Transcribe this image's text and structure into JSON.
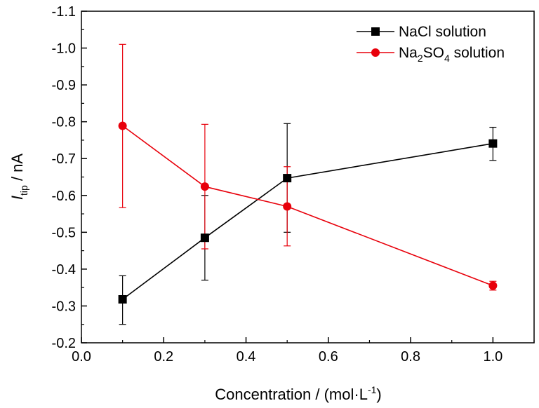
{
  "chart_data": {
    "type": "line",
    "xlabel": {
      "base": "Concentration / (mol·L",
      "sup": "-1",
      "close": ")"
    },
    "ylabel": {
      "italic": "I",
      "sub": "tip",
      "rest": " / nA"
    },
    "xlim": [
      0.0,
      1.1
    ],
    "ylim": [
      -0.2,
      -1.1
    ],
    "y_inverted": true,
    "grid": false,
    "legend_position": "top-right",
    "x_ticks": [
      0.0,
      0.2,
      0.4,
      0.6,
      0.8,
      1.0
    ],
    "x_tick_labels": [
      "0.0",
      "0.2",
      "0.4",
      "0.6",
      "0.8",
      "1.0"
    ],
    "y_ticks": [
      -0.2,
      -0.3,
      -0.4,
      -0.5,
      -0.6,
      -0.7,
      -0.8,
      -0.9,
      -1.0,
      -1.1
    ],
    "y_tick_labels": [
      "-0.2",
      "-0.3",
      "-0.4",
      "-0.5",
      "-0.6",
      "-0.7",
      "-0.8",
      "-0.9",
      "-1.0",
      "-1.1"
    ],
    "series": [
      {
        "name": "NaCl solution",
        "legend_parts": [
          {
            "t": "NaCl solution"
          }
        ],
        "color": "#000000",
        "marker": "square",
        "points": [
          {
            "x": 0.1,
            "y": -0.318,
            "err_low": -0.25,
            "err_high": -0.382
          },
          {
            "x": 0.3,
            "y": -0.485,
            "err_low": -0.37,
            "err_high": -0.6
          },
          {
            "x": 0.5,
            "y": -0.647,
            "err_low": -0.5,
            "err_high": -0.795
          },
          {
            "x": 1.0,
            "y": -0.741,
            "err_low": -0.695,
            "err_high": -0.785
          }
        ]
      },
      {
        "name": "Na2SO4 solution",
        "legend_parts": [
          {
            "t": "Na"
          },
          {
            "t": "2",
            "sub": true
          },
          {
            "t": "SO"
          },
          {
            "t": "4",
            "sub": true
          },
          {
            "t": " solution"
          }
        ],
        "color": "#e8000b",
        "marker": "circle",
        "points": [
          {
            "x": 0.1,
            "y": -0.789,
            "err_low": -0.567,
            "err_high": -1.01
          },
          {
            "x": 0.3,
            "y": -0.624,
            "err_low": -0.455,
            "err_high": -0.793
          },
          {
            "x": 0.5,
            "y": -0.57,
            "err_low": -0.463,
            "err_high": -0.678
          },
          {
            "x": 1.0,
            "y": -0.355,
            "err_low": -0.343,
            "err_high": -0.367
          }
        ]
      }
    ]
  }
}
